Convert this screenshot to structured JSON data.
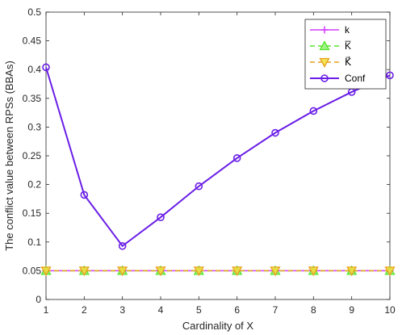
{
  "chart_data": {
    "type": "line",
    "title": "",
    "xlabel": "Cardinality of X",
    "ylabel": "The conflict value between RPSs (BBAs)",
    "x": [
      1,
      2,
      3,
      4,
      5,
      6,
      7,
      8,
      9,
      10
    ],
    "xlim": [
      1,
      10
    ],
    "ylim": [
      0,
      0.5
    ],
    "xticks": [
      "1",
      "2",
      "3",
      "4",
      "5",
      "6",
      "7",
      "8",
      "9",
      "10"
    ],
    "yticks": [
      "0",
      "0.05",
      "0.1",
      "0.15",
      "0.2",
      "0.25",
      "0.3",
      "0.35",
      "0.4",
      "0.45",
      "0.5"
    ],
    "grid": false,
    "legend_position": "top-right",
    "series": [
      {
        "name": "k",
        "color": "#d23cff",
        "marker": "plus",
        "dash": "solid",
        "values": [
          0.05,
          0.05,
          0.05,
          0.05,
          0.05,
          0.05,
          0.05,
          0.05,
          0.05,
          0.05
        ]
      },
      {
        "name": "K̅",
        "color": "#55e62a",
        "marker": "triangle-up",
        "dash": "dashed",
        "values": [
          0.05,
          0.05,
          0.05,
          0.05,
          0.05,
          0.05,
          0.05,
          0.05,
          0.05,
          0.05
        ]
      },
      {
        "name": "K⃗",
        "color": "#e6a01e",
        "marker": "triangle-down",
        "dash": "dashed",
        "values": [
          0.05,
          0.05,
          0.05,
          0.05,
          0.05,
          0.05,
          0.05,
          0.05,
          0.05,
          0.05
        ]
      },
      {
        "name": "Conf",
        "color": "#6a1ee6",
        "marker": "circle",
        "dash": "solid",
        "values": [
          0.404,
          0.182,
          0.093,
          0.143,
          0.197,
          0.246,
          0.29,
          0.328,
          0.361,
          0.39
        ]
      }
    ]
  }
}
